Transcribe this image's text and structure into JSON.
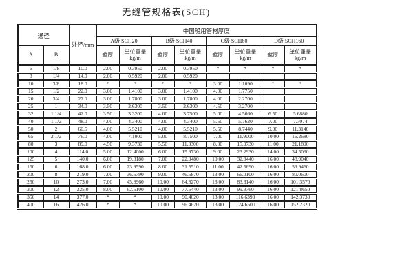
{
  "title": "无缝管规格表(SCH)",
  "table": {
    "header": {
      "nominal_diameter": "通径",
      "outer_diameter": "外径/mm",
      "group_title": "中国船用管材厚度",
      "col_a": "A",
      "col_b": "B",
      "grades": [
        "A级 SCH20",
        "B级 SCH40",
        "C级 SCH80",
        "D级 SCH160"
      ],
      "wall_thickness": "壁厚",
      "unit_weight": "单位重量",
      "unit": "kg/m"
    },
    "rows": [
      [
        "6",
        "1/8",
        "10.0",
        "2.00",
        "0.3950",
        "2.00",
        "0.3950",
        "*",
        "*",
        "*",
        "*"
      ],
      [
        "8",
        "1/4",
        "14.0",
        "2.00",
        "0.5920",
        "2.00",
        "0.5920",
        "",
        "",
        "",
        ""
      ],
      [
        "10",
        "3/8",
        "18.0",
        "*",
        "*",
        "*",
        "*",
        "3.00",
        "1.1090",
        "*",
        "*"
      ],
      [
        "15",
        "1/2",
        "22.0",
        "3.00",
        "1.4100",
        "3.00",
        "1.4100",
        "4.00",
        "1.7750",
        "",
        ""
      ],
      [
        "20",
        "3/4",
        "27.0",
        "3.00",
        "1.7800",
        "3.00",
        "1.7800",
        "4.00",
        "2.2700",
        "",
        ""
      ],
      [
        "25",
        "1",
        "34.0",
        "3.50",
        "2.6300",
        "3.50",
        "2.6300",
        "4.50",
        "3.2700",
        "",
        ""
      ],
      [
        "32",
        "1 1/4",
        "42.0",
        "3.50",
        "3.3200",
        "4.00",
        "3.7500",
        "5.00",
        "4.5660",
        "6.50",
        "5.6880"
      ],
      [
        "40",
        "1 1/2",
        "48.0",
        "4.00",
        "4.3400",
        "4.00",
        "4.3400",
        "5.50",
        "5.7620",
        "7.00",
        "7.7074"
      ],
      [
        "50",
        "2",
        "60.5",
        "4.00",
        "5.5210",
        "4.00",
        "5.5210",
        "5.50",
        "8.7440",
        "9.00",
        "11.3140"
      ],
      [
        "65",
        "2 1/2",
        "76.0",
        "4.00",
        "7.1000",
        "5.00",
        "8.7500",
        "7.00",
        "11.9000",
        "10.00",
        "16.2680"
      ],
      [
        "80",
        "3",
        "89.0",
        "4.50",
        "9.3730",
        "5.50",
        "11.3300",
        "8.00",
        "15.9730",
        "11.00",
        "21.1890"
      ],
      [
        "100",
        "4",
        "114.0",
        "5.00",
        "12.4000",
        "6.00",
        "15.9730",
        "9.00",
        "23.2930",
        "14.00",
        "34.5090"
      ],
      [
        "125",
        "5",
        "140.0",
        "6.00",
        "19.8180",
        "7.00",
        "22.9480",
        "10.00",
        "32.0440",
        "16.00",
        "48.9040"
      ],
      [
        "150",
        "6",
        "168.0",
        "6.00",
        "23.9590",
        "8.00",
        "31.5510",
        "11.00",
        "42.5690",
        "16.00",
        "59.9460"
      ],
      [
        "200",
        "8",
        "219.0",
        "7.00",
        "36.5790",
        "9.00",
        "46.5870",
        "13.00",
        "66.0100",
        "16.00",
        "80.0600"
      ],
      [
        "250",
        "10",
        "273.0",
        "7.00",
        "45.8960",
        "10.00",
        "64.8270",
        "13.00",
        "83.3140",
        "16.00",
        "101.3570"
      ],
      [
        "300",
        "12",
        "325.0",
        "8.00",
        "62.5100",
        "10.00",
        "77.6440",
        "13.00",
        "99.9760",
        "16.00",
        "121.8650"
      ],
      [
        "350",
        "14",
        "377.0",
        "*",
        "*",
        "10.00",
        "90.4620",
        "13.00",
        "116.6390",
        "16.00",
        "142.3730"
      ],
      [
        "400",
        "16",
        "426.0",
        "*",
        "*",
        "10.00",
        "96.4620",
        "13.00",
        "124.6500",
        "16.00",
        "152.2320"
      ]
    ]
  }
}
